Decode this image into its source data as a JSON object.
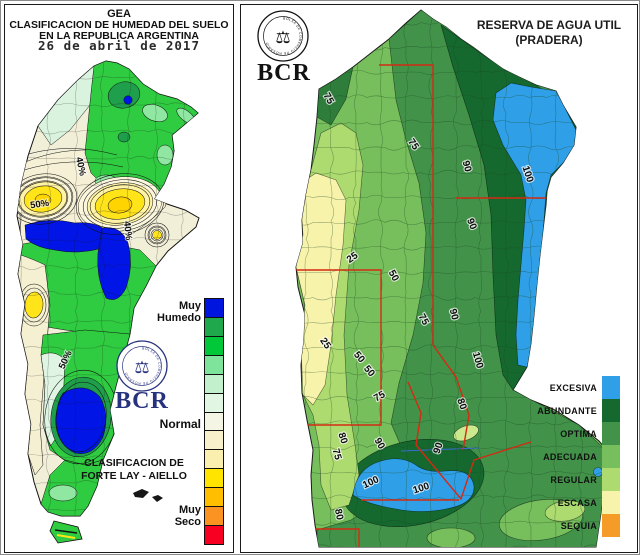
{
  "left_panel": {
    "title": {
      "line1": "GEA",
      "line2": "CLASIFICACION DE HUMEDAD DEL SUELO",
      "line3": "EN LA REPUBLICA ARGENTINA"
    },
    "date": "26 de abril de 2017",
    "logo": {
      "abbr": "BCR",
      "ring_text": "BOLSA DE COMERCIO DE ROSARIO",
      "color": "#27327E"
    },
    "classification": {
      "line1": "CLASIFICACION DE",
      "line2": "FORTE LAY - AIELLO"
    },
    "legend": {
      "top_label_line1": "Muy",
      "top_label_line2": "Humedo",
      "middle_label": "Normal",
      "bottom_label_line1": "Muy",
      "bottom_label_line2": "Seco",
      "colors": [
        "#0016DF",
        "#1FA84C",
        "#00C838",
        "#7FE49B",
        "#C2F0CC",
        "#E2F6E4",
        "#F5F5E6",
        "#F7F0CA",
        "#FAEFAE",
        "#FFE400",
        "#FFBF00",
        "#FA9321",
        "#F70021"
      ]
    },
    "contour_labels": [
      "50%",
      "40%",
      "40%",
      "50%"
    ]
  },
  "right_panel": {
    "title": {
      "line1": "RESERVA DE AGUA UTIL",
      "line2": "(PRADERA)"
    },
    "logo": {
      "abbr": "BCR",
      "ring_text": "BOLSA DE COMERCIO DE ROSARIO",
      "color": "#111111"
    },
    "legend": {
      "items": [
        {
          "label": "EXCESIVA",
          "color": "#2F9FE8"
        },
        {
          "label": "ABUNDANTE",
          "color": "#15682E"
        },
        {
          "label": "OPTIMA",
          "color": "#42924A"
        },
        {
          "label": "ADECUADA",
          "color": "#77BE5C"
        },
        {
          "label": "REGULAR",
          "color": "#AEDB70"
        },
        {
          "label": "ESCASA",
          "color": "#F8F3AB"
        },
        {
          "label": "SEQUIA",
          "color": "#F59C28"
        }
      ]
    },
    "contour_labels": [
      "75",
      "75",
      "90",
      "100",
      "25",
      "50",
      "75",
      "25",
      "50",
      "50",
      "75",
      "80",
      "75",
      "90",
      "90",
      "100",
      "100",
      "80",
      "90",
      "100",
      "80",
      "90"
    ]
  }
}
